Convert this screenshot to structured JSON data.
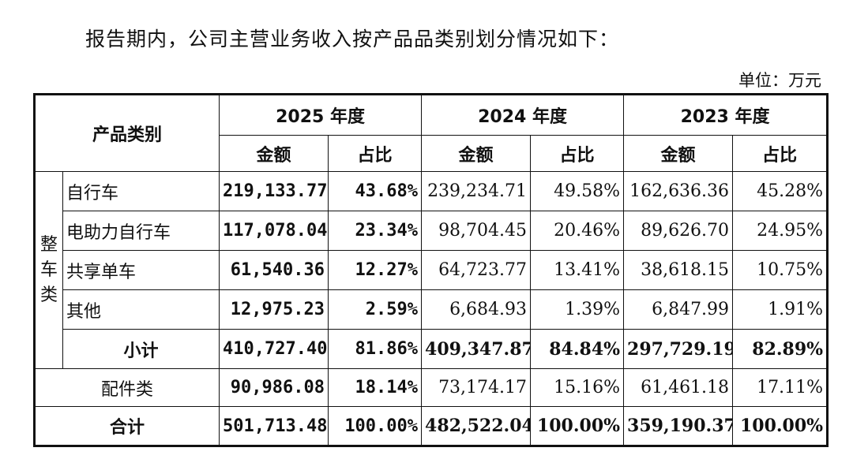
{
  "intro": "报告期内，公司主营业务收入按产品品类别划分情况如下：",
  "unit": "单位：万元",
  "header": {
    "category": "产品类别",
    "years": [
      "2025 年度",
      "2024 年度",
      "2023 年度"
    ],
    "amount": "金额",
    "ratio": "占比"
  },
  "group_label": [
    "整",
    "车",
    "类"
  ],
  "rows": [
    {
      "label": "自行车",
      "v": [
        "219,133.77",
        "43.68%",
        "239,234.71",
        "49.58%",
        "162,636.36",
        "45.28%"
      ]
    },
    {
      "label": "电助力自行车",
      "v": [
        "117,078.04",
        "23.34%",
        "98,704.45",
        "20.46%",
        "89,626.70",
        "24.95%"
      ]
    },
    {
      "label": "共享单车",
      "v": [
        "61,540.36",
        "12.27%",
        "64,723.77",
        "13.41%",
        "38,618.15",
        "10.75%"
      ]
    },
    {
      "label": "其他",
      "v": [
        "12,975.23",
        "2.59%",
        "6,684.93",
        "1.39%",
        "6,847.99",
        "1.91%"
      ]
    }
  ],
  "subtotal": {
    "label": "小计",
    "v": [
      "410,727.40",
      "81.86%",
      "409,347.87",
      "84.84%",
      "297,729.19",
      "82.89%"
    ]
  },
  "parts": {
    "label": "配件类",
    "v": [
      "90,986.08",
      "18.14%",
      "73,174.17",
      "15.16%",
      "61,461.18",
      "17.11%"
    ]
  },
  "total": {
    "label": "合计",
    "v": [
      "501,713.48",
      "100.00%",
      "482,522.04",
      "100.00%",
      "359,190.37",
      "100.00%"
    ]
  }
}
